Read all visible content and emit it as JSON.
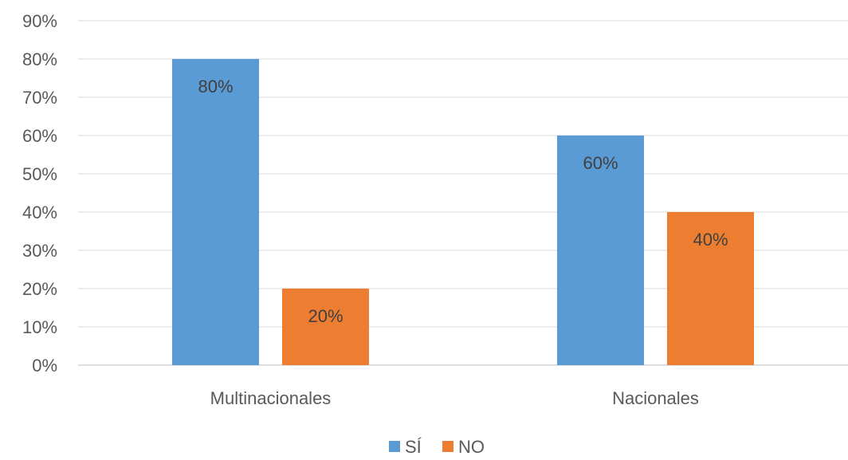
{
  "chart_data": {
    "type": "bar",
    "categories": [
      "Multinacionales",
      "Nacionales"
    ],
    "series": [
      {
        "name": "SÍ",
        "values": [
          80,
          60
        ],
        "color": "#5b9bd5"
      },
      {
        "name": "NO",
        "values": [
          20,
          40
        ],
        "color": "#ed7d31"
      }
    ],
    "data_labels": [
      [
        "80%",
        "60%"
      ],
      [
        "20%",
        "40%"
      ]
    ],
    "ylim": [
      0,
      90
    ],
    "yticks": [
      0,
      10,
      20,
      30,
      40,
      50,
      60,
      70,
      80,
      90
    ],
    "ytick_labels": [
      "0%",
      "10%",
      "20%",
      "30%",
      "40%",
      "50%",
      "60%",
      "70%",
      "80%",
      "90%"
    ],
    "title": "",
    "xlabel": "",
    "ylabel": "",
    "grid": true,
    "legend_position": "bottom"
  }
}
